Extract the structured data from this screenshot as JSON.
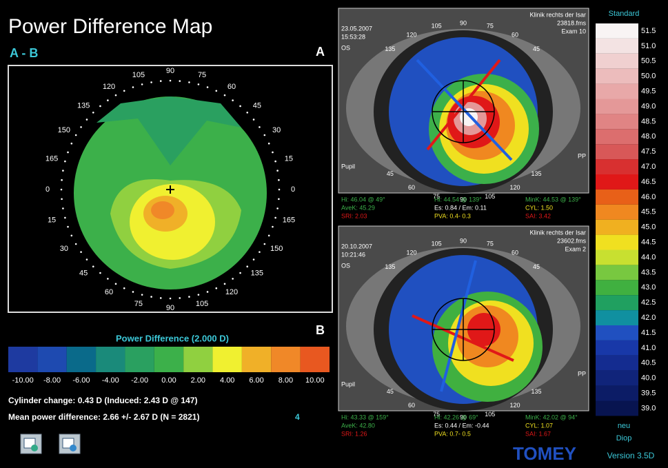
{
  "header": {
    "title": "Power Difference Map",
    "subtitle": "A - B",
    "label_a": "A",
    "label_b": "B"
  },
  "polar_map": {
    "angle_labels": [
      "0",
      "15",
      "30",
      "45",
      "60",
      "75",
      "90",
      "105",
      "120",
      "135",
      "150",
      "165",
      "0",
      "15",
      "30",
      "45",
      "60",
      "75",
      "90",
      "105",
      "120",
      "135",
      "150",
      "165"
    ]
  },
  "power_legend": {
    "title": "Power Difference (2.000 D)",
    "labels": [
      "-10.00",
      "-8.00",
      "-6.00",
      "-4.00",
      "-2.00",
      "0.00",
      "2.00",
      "4.00",
      "6.00",
      "8.00",
      "10.00"
    ],
    "colors": [
      "#1e3aa0",
      "#1e4ab0",
      "#0a6a8a",
      "#1a8a7a",
      "#2aa060",
      "#3cb04a",
      "#90d040",
      "#f0f030",
      "#f0b028",
      "#f08828",
      "#e85820"
    ]
  },
  "summary": {
    "cylinder": "Cylinder change:  0.43 D (Induced:  2.43 D @ 147)",
    "mean": "Mean power difference:  2.66 +/-  2.67 D (N = 2821)",
    "count": "4"
  },
  "exam_a": {
    "date": "23.05.2007",
    "time": "15:53:28",
    "eye": "OS",
    "clinic": "Klinik rechts der Isar",
    "file": "23818.fms",
    "exam": "Exam 10",
    "pupil": "Pupil",
    "pp": "PP",
    "angle_labels": [
      "135",
      "120",
      "105",
      "90",
      "75",
      "60",
      "45",
      "45",
      "60",
      "75",
      "90",
      "105",
      "120",
      "135"
    ],
    "stats": [
      "Hi: 46.04 @ 49°",
      "Hi: 44.54 @ 139°",
      "MinK: 44.53 @ 139°",
      "AveK: 45.29",
      "Es: 0.84 / Em: 0.11",
      "CYL: 1.50",
      "SRI: 2.03",
      "PVA: 0.4- 0.3",
      "SAI: 3.42"
    ]
  },
  "exam_b": {
    "date": "20.10.2007",
    "time": "10:21:46",
    "eye": "OS",
    "clinic": "Klinik rechts der Isar",
    "file": "23602.fms",
    "exam": "Exam 2",
    "pupil": "Pupil",
    "pp": "PP",
    "angle_labels": [
      "135",
      "120",
      "105",
      "90",
      "75",
      "60",
      "45",
      "45",
      "60",
      "75",
      "90",
      "105",
      "120",
      "135"
    ],
    "stats": [
      "Hi: 43.33 @ 159°",
      "Hi: 42.26 @ 69°",
      "MinK: 42.02 @ 94°",
      "AveK: 42.80",
      "Es: 0.44 / Em: -0.44",
      "CYL: 1.07",
      "SRI: 1.26",
      "PVA: 0.7- 0.5",
      "SAI: 1.67"
    ]
  },
  "scale": {
    "title": "Standard",
    "values": [
      "51.5",
      "51.0",
      "50.5",
      "50.0",
      "49.5",
      "49.0",
      "48.5",
      "48.0",
      "47.5",
      "47.0",
      "46.5",
      "46.0",
      "45.5",
      "45.0",
      "44.5",
      "44.0",
      "43.5",
      "43.0",
      "42.5",
      "42.0",
      "41.5",
      "41.0",
      "40.5",
      "40.0",
      "39.5",
      "39.0"
    ],
    "colors": [
      "#f8f4f4",
      "#f3e3e3",
      "#f0d0d0",
      "#ecbcbc",
      "#e8a8a8",
      "#e49898",
      "#e08484",
      "#dc6e6e",
      "#d85858",
      "#d83030",
      "#e01818",
      "#e86018",
      "#f08820",
      "#f0b020",
      "#f0e020",
      "#c8e030",
      "#78c840",
      "#40b040",
      "#20a060",
      "#1090a0",
      "#2050c0",
      "#1838a8",
      "#142c90",
      "#10247a",
      "#0c1c66",
      "#081450"
    ],
    "mode": "neu",
    "unit": "Diop"
  },
  "footer": {
    "brand": "TOMEY",
    "version": "Version 3.5D"
  }
}
